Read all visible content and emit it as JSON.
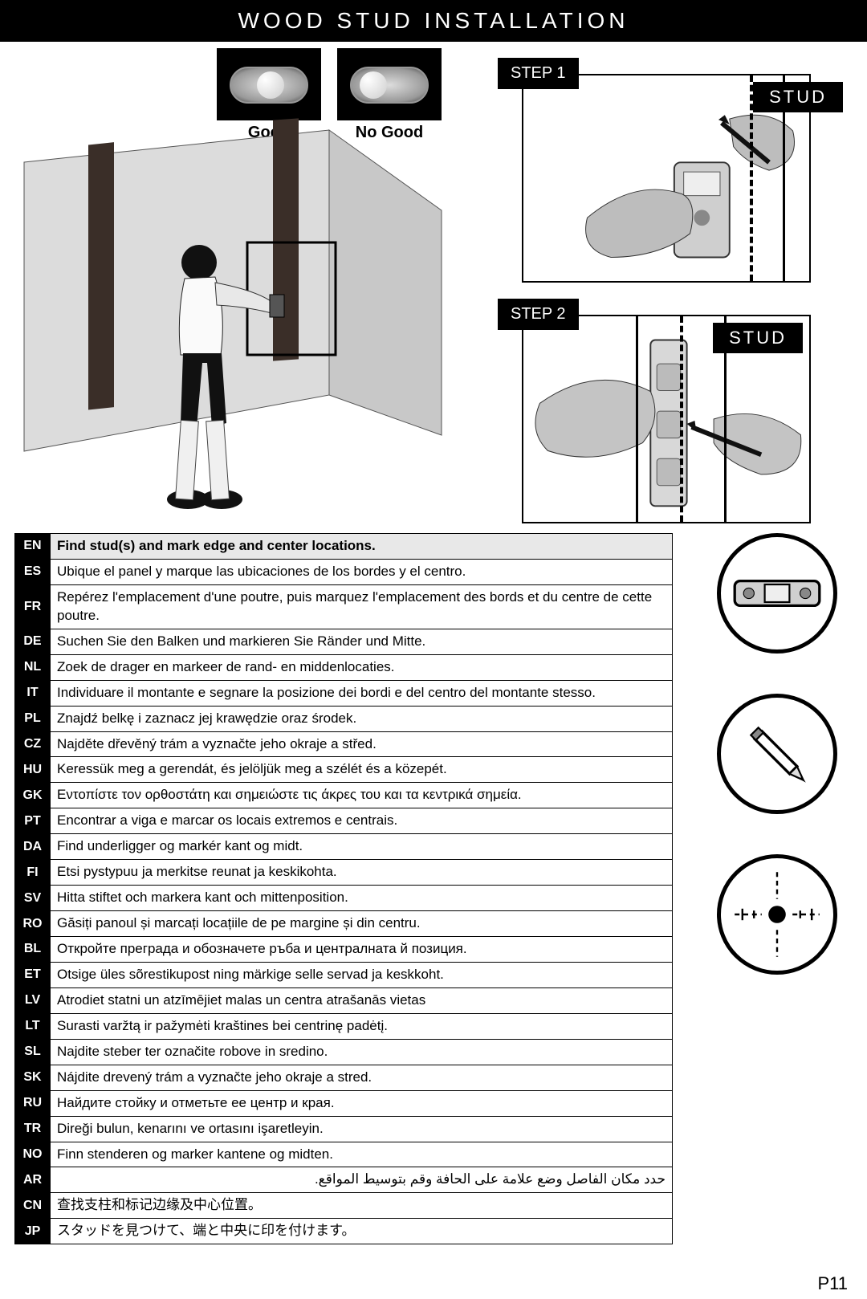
{
  "title": "WOOD STUD INSTALLATION",
  "levels": {
    "good": "Good",
    "nogood": "No Good"
  },
  "step1_label": "STEP 1",
  "step2_label": "STEP 2",
  "stud_label": "STUD",
  "page_number": "P11",
  "instructions": [
    {
      "lang": "EN",
      "text": "Find stud(s) and mark edge and center locations.",
      "hl": true
    },
    {
      "lang": "ES",
      "text": "Ubique el panel y marque las ubicaciones de los bordes y el centro."
    },
    {
      "lang": "FR",
      "text": "Repérez l'emplacement d'une poutre, puis marquez l'emplacement des bords et du centre de cette poutre."
    },
    {
      "lang": "DE",
      "text": "Suchen Sie den Balken und markieren Sie Ränder und Mitte."
    },
    {
      "lang": "NL",
      "text": "Zoek de drager en markeer de rand- en middenlocaties."
    },
    {
      "lang": "IT",
      "text": "Individuare il montante e segnare la posizione dei bordi e del centro del montante stesso."
    },
    {
      "lang": "PL",
      "text": "Znajdź belkę i zaznacz jej krawędzie oraz środek."
    },
    {
      "lang": "CZ",
      "text": "Najděte dřevěný trám a vyznačte jeho okraje a střed."
    },
    {
      "lang": "HU",
      "text": "Keressük meg a gerendát, és jelöljük meg a szélét és a közepét."
    },
    {
      "lang": "GK",
      "text": "Εντοπίστε τον ορθοστάτη και σημειώστε τις άκρες του και τα κεντρικά σημεία."
    },
    {
      "lang": "PT",
      "text": "Encontrar a viga e marcar os locais extremos e centrais."
    },
    {
      "lang": "DA",
      "text": "Find underligger og markér kant og midt."
    },
    {
      "lang": "FI",
      "text": "Etsi pystypuu ja merkitse reunat ja keskikohta."
    },
    {
      "lang": "SV",
      "text": "Hitta stiftet och markera kant och mittenposition."
    },
    {
      "lang": "RO",
      "text": "Găsiți panoul și marcați locațiile de pe margine și din centru."
    },
    {
      "lang": "BL",
      "text": "Откройте преграда и обозначете ръба и централната й позиция."
    },
    {
      "lang": "ET",
      "text": "Otsige üles sõrestikupost ning märkige selle servad ja keskkoht."
    },
    {
      "lang": "LV",
      "text": "Atrodiet statni un atzīmējiet malas un centra atrašanās vietas"
    },
    {
      "lang": "LT",
      "text": "Surasti varžtą ir pažymėti kraštines bei centrinę padėtį."
    },
    {
      "lang": "SL",
      "text": "Najdite steber ter označite robove in sredino."
    },
    {
      "lang": "SK",
      "text": "Nájdite drevený trám a vyznačte jeho okraje a stred."
    },
    {
      "lang": "RU",
      "text": "Найдите стойку и отметьте ее центр и края."
    },
    {
      "lang": "TR",
      "text": "Direği bulun, kenarını ve ortasını işaretleyin."
    },
    {
      "lang": "NO",
      "text": "Finn stenderen og marker kantene og midten."
    },
    {
      "lang": "AR",
      "text": "حدد مكان الفاصل وضع علامة على الحافة وقم بتوسيط المواقع."
    },
    {
      "lang": "CN",
      "text": "查找支柱和标记边缘及中心位置。"
    },
    {
      "lang": "JP",
      "text": "スタッドを見つけて、端と中央に印を付けます。"
    }
  ]
}
